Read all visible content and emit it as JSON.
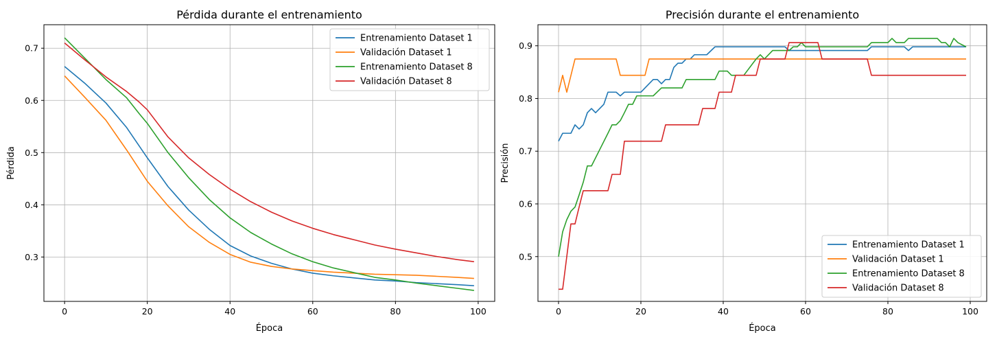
{
  "chart_data": [
    {
      "type": "line",
      "title": "Pérdida durante el entrenamiento",
      "xlabel": "Época",
      "ylabel": "Pérdida",
      "xlim": [
        -5,
        104
      ],
      "ylim": [
        0.215,
        0.745
      ],
      "xticks": [
        0,
        20,
        40,
        60,
        80,
        100
      ],
      "yticks": [
        0.3,
        0.4,
        0.5,
        0.6,
        0.7
      ],
      "ytick_labels": [
        "0.3",
        "0.4",
        "0.5",
        "0.6",
        "0.7"
      ],
      "grid": true,
      "legend_position": "top-right",
      "series": [
        {
          "name": "Entrenamiento Dataset 1",
          "color": "#1f77b4",
          "points": [
            [
              0,
              0.665
            ],
            [
              5,
              0.632
            ],
            [
              10,
              0.595
            ],
            [
              15,
              0.548
            ],
            [
              20,
              0.49
            ],
            [
              25,
              0.435
            ],
            [
              30,
              0.39
            ],
            [
              35,
              0.353
            ],
            [
              40,
              0.322
            ],
            [
              45,
              0.302
            ],
            [
              50,
              0.288
            ],
            [
              55,
              0.277
            ],
            [
              60,
              0.269
            ],
            [
              65,
              0.264
            ],
            [
              70,
              0.26
            ],
            [
              75,
              0.256
            ],
            [
              80,
              0.254
            ],
            [
              85,
              0.251
            ],
            [
              90,
              0.249
            ],
            [
              95,
              0.247
            ],
            [
              99,
              0.245
            ]
          ]
        },
        {
          "name": "Validación Dataset 1",
          "color": "#ff7f0e",
          "points": [
            [
              0,
              0.647
            ],
            [
              5,
              0.605
            ],
            [
              10,
              0.562
            ],
            [
              15,
              0.505
            ],
            [
              20,
              0.445
            ],
            [
              25,
              0.398
            ],
            [
              30,
              0.358
            ],
            [
              35,
              0.328
            ],
            [
              40,
              0.305
            ],
            [
              45,
              0.29
            ],
            [
              50,
              0.282
            ],
            [
              55,
              0.277
            ],
            [
              60,
              0.274
            ],
            [
              65,
              0.271
            ],
            [
              70,
              0.269
            ],
            [
              75,
              0.267
            ],
            [
              80,
              0.266
            ],
            [
              85,
              0.265
            ],
            [
              90,
              0.263
            ],
            [
              95,
              0.261
            ],
            [
              99,
              0.259
            ]
          ]
        },
        {
          "name": "Entrenamiento Dataset 8",
          "color": "#2ca02c",
          "points": [
            [
              0,
              0.72
            ],
            [
              5,
              0.68
            ],
            [
              10,
              0.64
            ],
            [
              15,
              0.605
            ],
            [
              18,
              0.575
            ],
            [
              20,
              0.556
            ],
            [
              25,
              0.5
            ],
            [
              30,
              0.452
            ],
            [
              35,
              0.41
            ],
            [
              40,
              0.375
            ],
            [
              45,
              0.347
            ],
            [
              50,
              0.325
            ],
            [
              55,
              0.306
            ],
            [
              60,
              0.291
            ],
            [
              65,
              0.279
            ],
            [
              70,
              0.27
            ],
            [
              75,
              0.261
            ],
            [
              80,
              0.256
            ],
            [
              85,
              0.25
            ],
            [
              90,
              0.245
            ],
            [
              95,
              0.24
            ],
            [
              99,
              0.236
            ]
          ]
        },
        {
          "name": "Validación Dataset 8",
          "color": "#d62728",
          "points": [
            [
              0,
              0.71
            ],
            [
              5,
              0.677
            ],
            [
              10,
              0.645
            ],
            [
              15,
              0.617
            ],
            [
              18,
              0.597
            ],
            [
              20,
              0.582
            ],
            [
              25,
              0.53
            ],
            [
              30,
              0.49
            ],
            [
              35,
              0.458
            ],
            [
              40,
              0.43
            ],
            [
              45,
              0.406
            ],
            [
              50,
              0.386
            ],
            [
              55,
              0.369
            ],
            [
              60,
              0.355
            ],
            [
              65,
              0.343
            ],
            [
              70,
              0.333
            ],
            [
              75,
              0.323
            ],
            [
              80,
              0.315
            ],
            [
              85,
              0.308
            ],
            [
              90,
              0.301
            ],
            [
              95,
              0.295
            ],
            [
              99,
              0.291
            ]
          ]
        }
      ]
    },
    {
      "type": "line",
      "title": "Precisión durante el entrenamiento",
      "xlabel": "Época",
      "ylabel": "Precisión",
      "xlim": [
        -5,
        104
      ],
      "ylim": [
        0.415,
        0.94
      ],
      "xticks": [
        0,
        20,
        40,
        60,
        80,
        100
      ],
      "yticks": [
        0.5,
        0.6,
        0.7,
        0.8,
        0.9
      ],
      "ytick_labels": [
        "0.5",
        "0.6",
        "0.7",
        "0.8",
        "0.9"
      ],
      "grid": true,
      "legend_position": "bottom-right",
      "series": [
        {
          "name": "Entrenamiento Dataset 1",
          "color": "#1f77b4",
          "points": [
            [
              0,
              0.719
            ],
            [
              1,
              0.734
            ],
            [
              3,
              0.734
            ],
            [
              4,
              0.75
            ],
            [
              5,
              0.742
            ],
            [
              6,
              0.75
            ],
            [
              7,
              0.773
            ],
            [
              8,
              0.781
            ],
            [
              9,
              0.773
            ],
            [
              11,
              0.789
            ],
            [
              12,
              0.812
            ],
            [
              14,
              0.812
            ],
            [
              15,
              0.805
            ],
            [
              16,
              0.812
            ],
            [
              20,
              0.812
            ],
            [
              22,
              0.828
            ],
            [
              23,
              0.836
            ],
            [
              24,
              0.836
            ],
            [
              25,
              0.828
            ],
            [
              26,
              0.836
            ],
            [
              27,
              0.836
            ],
            [
              28,
              0.859
            ],
            [
              29,
              0.867
            ],
            [
              30,
              0.867
            ],
            [
              31,
              0.875
            ],
            [
              32,
              0.875
            ],
            [
              33,
              0.883
            ],
            [
              36,
              0.883
            ],
            [
              38,
              0.898
            ],
            [
              55,
              0.898
            ],
            [
              56,
              0.891
            ],
            [
              75,
              0.891
            ],
            [
              76,
              0.898
            ],
            [
              84,
              0.898
            ],
            [
              85,
              0.891
            ],
            [
              86,
              0.898
            ],
            [
              99,
              0.898
            ]
          ]
        },
        {
          "name": "Validación Dataset 1",
          "color": "#ff7f0e",
          "points": [
            [
              0,
              0.812
            ],
            [
              1,
              0.844
            ],
            [
              2,
              0.812
            ],
            [
              4,
              0.875
            ],
            [
              14,
              0.875
            ],
            [
              15,
              0.844
            ],
            [
              21,
              0.844
            ],
            [
              22,
              0.875
            ],
            [
              99,
              0.875
            ]
          ]
        },
        {
          "name": "Entrenamiento Dataset 8",
          "color": "#2ca02c",
          "points": [
            [
              0,
              0.5
            ],
            [
              1,
              0.547
            ],
            [
              2,
              0.57
            ],
            [
              3,
              0.586
            ],
            [
              4,
              0.594
            ],
            [
              5,
              0.617
            ],
            [
              6,
              0.641
            ],
            [
              7,
              0.672
            ],
            [
              8,
              0.672
            ],
            [
              10,
              0.703
            ],
            [
              12,
              0.734
            ],
            [
              13,
              0.75
            ],
            [
              14,
              0.75
            ],
            [
              15,
              0.758
            ],
            [
              16,
              0.773
            ],
            [
              17,
              0.789
            ],
            [
              18,
              0.789
            ],
            [
              19,
              0.805
            ],
            [
              23,
              0.805
            ],
            [
              25,
              0.82
            ],
            [
              30,
              0.82
            ],
            [
              31,
              0.836
            ],
            [
              38,
              0.836
            ],
            [
              39,
              0.852
            ],
            [
              41,
              0.852
            ],
            [
              42,
              0.844
            ],
            [
              45,
              0.844
            ],
            [
              48,
              0.875
            ],
            [
              49,
              0.883
            ],
            [
              50,
              0.875
            ],
            [
              52,
              0.891
            ],
            [
              56,
              0.891
            ],
            [
              57,
              0.898
            ],
            [
              58,
              0.898
            ],
            [
              59,
              0.906
            ],
            [
              60,
              0.898
            ],
            [
              75,
              0.898
            ],
            [
              76,
              0.906
            ],
            [
              80,
              0.906
            ],
            [
              81,
              0.914
            ],
            [
              82,
              0.906
            ],
            [
              84,
              0.906
            ],
            [
              85,
              0.914
            ],
            [
              92,
              0.914
            ],
            [
              93,
              0.906
            ],
            [
              94,
              0.906
            ],
            [
              95,
              0.898
            ],
            [
              96,
              0.914
            ],
            [
              97,
              0.906
            ],
            [
              99,
              0.898
            ]
          ]
        },
        {
          "name": "Validación Dataset 8",
          "color": "#d62728",
          "points": [
            [
              0,
              0.438
            ],
            [
              1,
              0.438
            ],
            [
              2,
              0.5
            ],
            [
              3,
              0.562
            ],
            [
              4,
              0.562
            ],
            [
              5,
              0.594
            ],
            [
              6,
              0.625
            ],
            [
              12,
              0.625
            ],
            [
              13,
              0.656
            ],
            [
              15,
              0.656
            ],
            [
              16,
              0.719
            ],
            [
              25,
              0.719
            ],
            [
              26,
              0.75
            ],
            [
              34,
              0.75
            ],
            [
              35,
              0.781
            ],
            [
              38,
              0.781
            ],
            [
              39,
              0.812
            ],
            [
              42,
              0.812
            ],
            [
              43,
              0.844
            ],
            [
              48,
              0.844
            ],
            [
              49,
              0.875
            ],
            [
              55,
              0.875
            ],
            [
              56,
              0.906
            ],
            [
              63,
              0.906
            ],
            [
              64,
              0.875
            ],
            [
              75,
              0.875
            ],
            [
              76,
              0.844
            ],
            [
              99,
              0.844
            ]
          ]
        }
      ]
    }
  ]
}
